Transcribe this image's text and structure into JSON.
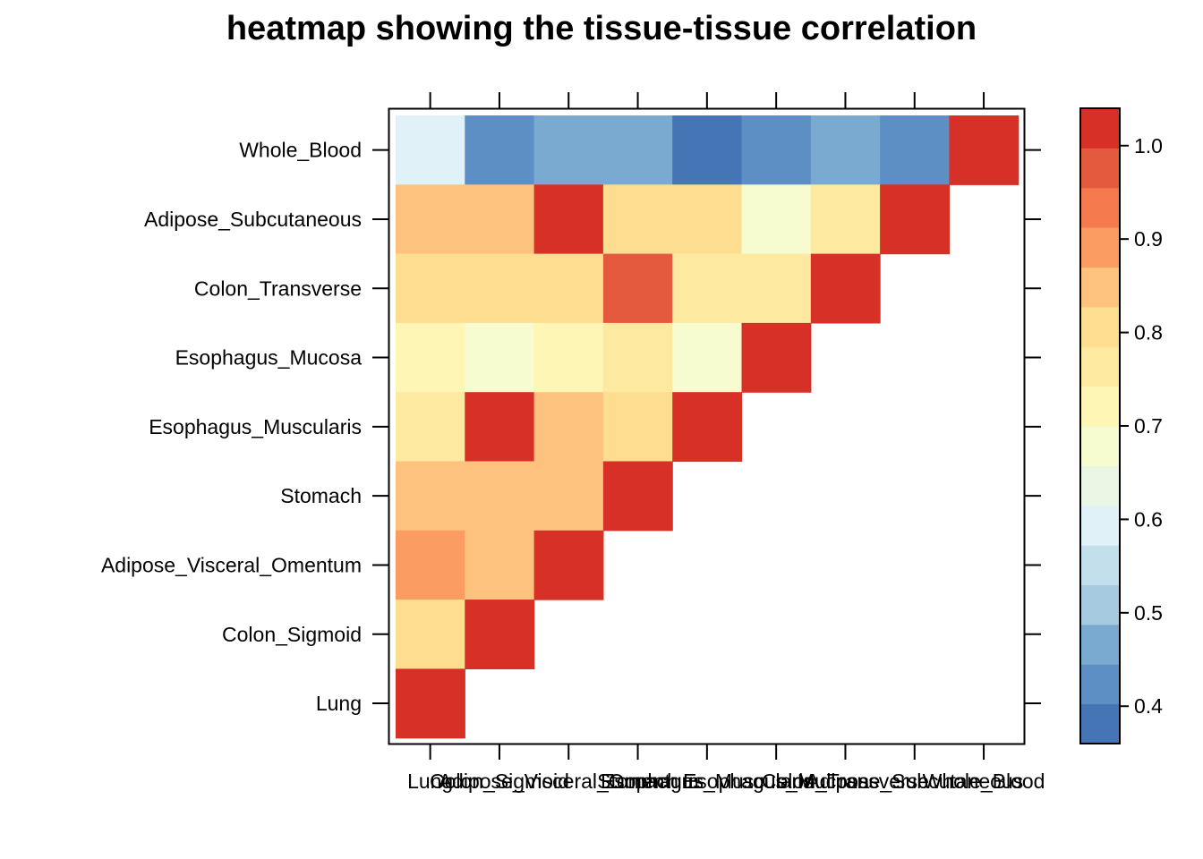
{
  "chart_data": {
    "type": "heatmap",
    "title": "heatmap showing the tissue-tissue correlation",
    "xlabel": "",
    "ylabel": "",
    "x_categories": [
      "Lung",
      "Colon_Sigmoid",
      "Adipose_Visceral_Omentum",
      "Stomach",
      "Esophagus_Muscularis",
      "Esophagus_Mucosa",
      "Colon_Transverse",
      "Adipose_Subcutaneous",
      "Whole_Blood"
    ],
    "y_categories": [
      "Whole_Blood",
      "Adipose_Subcutaneous",
      "Colon_Transverse",
      "Esophagus_Mucosa",
      "Esophagus_Muscularis",
      "Stomach",
      "Adipose_Visceral_Omentum",
      "Colon_Sigmoid",
      "Lung"
    ],
    "values": [
      [
        0.57,
        0.42,
        0.46,
        0.46,
        0.38,
        0.42,
        0.46,
        0.42,
        1.0
      ],
      [
        0.81,
        0.81,
        0.97,
        0.77,
        0.77,
        0.65,
        0.73,
        1.0,
        null
      ],
      [
        0.77,
        0.77,
        0.77,
        0.93,
        0.73,
        0.73,
        1.0,
        null,
        null
      ],
      [
        0.69,
        0.65,
        0.69,
        0.73,
        0.65,
        1.0,
        null,
        null,
        null
      ],
      [
        0.73,
        0.97,
        0.81,
        0.77,
        1.0,
        null,
        null,
        null,
        null
      ],
      [
        0.81,
        0.81,
        0.81,
        1.0,
        null,
        null,
        null,
        null,
        null
      ],
      [
        0.85,
        0.81,
        1.0,
        null,
        null,
        null,
        null,
        null,
        null
      ],
      [
        0.77,
        1.0,
        null,
        null,
        null,
        null,
        null,
        null,
        null
      ],
      [
        1.0,
        null,
        null,
        null,
        null,
        null,
        null,
        null,
        null
      ]
    ],
    "colorbar": {
      "min": 0.36,
      "max": 1.04,
      "step": 0.04,
      "colors": [
        "#4575B4",
        "#5E8FC4",
        "#7AAAD0",
        "#A6CAE0",
        "#C4DFEC",
        "#E0F2F7",
        "#EBF5E4",
        "#F6FBD0",
        "#FEF6B5",
        "#FEE9A0",
        "#FDDE90",
        "#FDC27D",
        "#FB9D62",
        "#F57B4E",
        "#E45A3E",
        "#D73027"
      ],
      "ticks": [
        0.4,
        0.5,
        0.6,
        0.7,
        0.8,
        0.9,
        1.0
      ],
      "tick_labels": [
        "0.4",
        "0.5",
        "0.6",
        "0.7",
        "0.8",
        "0.9",
        "1.0"
      ]
    }
  }
}
